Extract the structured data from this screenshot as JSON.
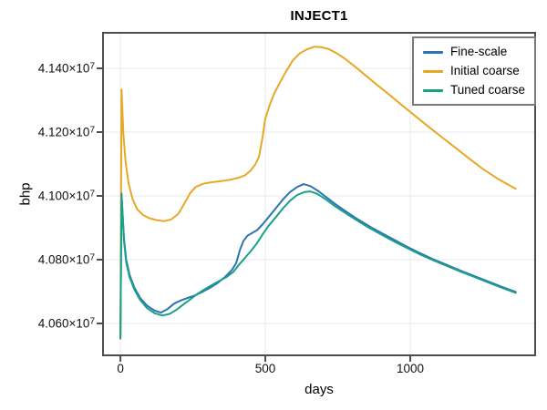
{
  "chart_data": {
    "type": "line",
    "title": "INJECT1",
    "xlabel": "days",
    "ylabel": "bhp",
    "xlim": [
      -60,
      1431
    ],
    "ylim": [
      40500000,
      41511500
    ],
    "grid": true,
    "legend_position": "top-right",
    "x_ticks": {
      "values": [
        0,
        500,
        1000
      ],
      "labels": [
        "0",
        "500",
        "1000"
      ]
    },
    "y_ticks": {
      "values": [
        40600000,
        40800000,
        41000000,
        41200000,
        41400000
      ],
      "labels": [
        "4.060×10^7",
        "4.080×10^7",
        "4.100×10^7",
        "4.120×10^7",
        "4.140×10^7"
      ]
    },
    "style": {
      "background": "#ffffff",
      "frame_color": "#4d4d4d",
      "grid_color": "#e9e9e9",
      "tick_text_color": "#111111",
      "legend_border_color": "#7a7a7a"
    },
    "series": [
      {
        "name": "Fine-scale",
        "color": "#2e73b2",
        "points": [
          [
            0,
            40555000
          ],
          [
            4,
            41005000
          ],
          [
            12,
            40870000
          ],
          [
            20,
            40800000
          ],
          [
            32,
            40752000
          ],
          [
            48,
            40713000
          ],
          [
            68,
            40680000
          ],
          [
            92,
            40656000
          ],
          [
            118,
            40640000
          ],
          [
            140,
            40634000
          ],
          [
            162,
            40645000
          ],
          [
            185,
            40662000
          ],
          [
            208,
            40672000
          ],
          [
            232,
            40680000
          ],
          [
            258,
            40688000
          ],
          [
            285,
            40700000
          ],
          [
            310,
            40712000
          ],
          [
            335,
            40727000
          ],
          [
            360,
            40745000
          ],
          [
            385,
            40768000
          ],
          [
            400,
            40790000
          ],
          [
            412,
            40830000
          ],
          [
            424,
            40858000
          ],
          [
            438,
            40875000
          ],
          [
            455,
            40884000
          ],
          [
            472,
            40893000
          ],
          [
            490,
            40910000
          ],
          [
            510,
            40932000
          ],
          [
            535,
            40960000
          ],
          [
            560,
            40988000
          ],
          [
            585,
            41012000
          ],
          [
            610,
            41028000
          ],
          [
            632,
            41037000
          ],
          [
            655,
            41031000
          ],
          [
            680,
            41017000
          ],
          [
            710,
            40996000
          ],
          [
            745,
            40972000
          ],
          [
            780,
            40950000
          ],
          [
            820,
            40926000
          ],
          [
            860,
            40904000
          ],
          [
            900,
            40884000
          ],
          [
            945,
            40862000
          ],
          [
            990,
            40840000
          ],
          [
            1035,
            40820000
          ],
          [
            1080,
            40801000
          ],
          [
            1125,
            40784000
          ],
          [
            1170,
            40767000
          ],
          [
            1215,
            40751000
          ],
          [
            1260,
            40735000
          ],
          [
            1310,
            40717000
          ],
          [
            1364,
            40699000
          ]
        ]
      },
      {
        "name": "Initial coarse",
        "color": "#e7a826",
        "points": [
          [
            0,
            40555000
          ],
          [
            4,
            41334000
          ],
          [
            10,
            41195000
          ],
          [
            18,
            41105000
          ],
          [
            28,
            41040000
          ],
          [
            42,
            40990000
          ],
          [
            58,
            40958000
          ],
          [
            78,
            40940000
          ],
          [
            100,
            40930000
          ],
          [
            125,
            40924000
          ],
          [
            150,
            40921000
          ],
          [
            175,
            40926000
          ],
          [
            200,
            40944000
          ],
          [
            220,
            40975000
          ],
          [
            240,
            41008000
          ],
          [
            260,
            41028000
          ],
          [
            285,
            41038000
          ],
          [
            315,
            41043000
          ],
          [
            345,
            41046000
          ],
          [
            375,
            41050000
          ],
          [
            405,
            41056000
          ],
          [
            430,
            41065000
          ],
          [
            450,
            41080000
          ],
          [
            465,
            41098000
          ],
          [
            478,
            41122000
          ],
          [
            490,
            41180000
          ],
          [
            500,
            41242000
          ],
          [
            515,
            41285000
          ],
          [
            530,
            41320000
          ],
          [
            550,
            41355000
          ],
          [
            570,
            41388000
          ],
          [
            595,
            41425000
          ],
          [
            620,
            41448000
          ],
          [
            645,
            41460000
          ],
          [
            670,
            41468000
          ],
          [
            695,
            41466000
          ],
          [
            720,
            41460000
          ],
          [
            745,
            41448000
          ],
          [
            775,
            41430000
          ],
          [
            810,
            41405000
          ],
          [
            850,
            41375000
          ],
          [
            890,
            41345000
          ],
          [
            935,
            41312000
          ],
          [
            980,
            41278000
          ],
          [
            1025,
            41245000
          ],
          [
            1070,
            41212000
          ],
          [
            1115,
            41180000
          ],
          [
            1160,
            41148000
          ],
          [
            1205,
            41116000
          ],
          [
            1250,
            41085000
          ],
          [
            1305,
            41052000
          ],
          [
            1364,
            41022000
          ]
        ]
      },
      {
        "name": "Tuned coarse",
        "color": "#18a189",
        "points": [
          [
            0,
            40552000
          ],
          [
            4,
            41008000
          ],
          [
            12,
            40862000
          ],
          [
            20,
            40792000
          ],
          [
            32,
            40745000
          ],
          [
            48,
            40707000
          ],
          [
            68,
            40674000
          ],
          [
            92,
            40648000
          ],
          [
            118,
            40632000
          ],
          [
            145,
            40625000
          ],
          [
            170,
            40630000
          ],
          [
            192,
            40642000
          ],
          [
            215,
            40658000
          ],
          [
            240,
            40675000
          ],
          [
            265,
            40692000
          ],
          [
            290,
            40707000
          ],
          [
            315,
            40720000
          ],
          [
            340,
            40733000
          ],
          [
            365,
            40745000
          ],
          [
            390,
            40762000
          ],
          [
            410,
            40785000
          ],
          [
            430,
            40806000
          ],
          [
            450,
            40827000
          ],
          [
            470,
            40850000
          ],
          [
            490,
            40878000
          ],
          [
            510,
            40905000
          ],
          [
            535,
            40932000
          ],
          [
            560,
            40960000
          ],
          [
            585,
            40985000
          ],
          [
            610,
            41003000
          ],
          [
            635,
            41012000
          ],
          [
            655,
            41014000
          ],
          [
            680,
            41006000
          ],
          [
            710,
            40988000
          ],
          [
            745,
            40965000
          ],
          [
            780,
            40944000
          ],
          [
            820,
            40921000
          ],
          [
            860,
            40899000
          ],
          [
            900,
            40879000
          ],
          [
            945,
            40857000
          ],
          [
            990,
            40836000
          ],
          [
            1035,
            40816000
          ],
          [
            1080,
            40798000
          ],
          [
            1125,
            40781000
          ],
          [
            1170,
            40764000
          ],
          [
            1215,
            40748000
          ],
          [
            1260,
            40732000
          ],
          [
            1310,
            40714000
          ],
          [
            1364,
            40696000
          ]
        ]
      }
    ]
  }
}
